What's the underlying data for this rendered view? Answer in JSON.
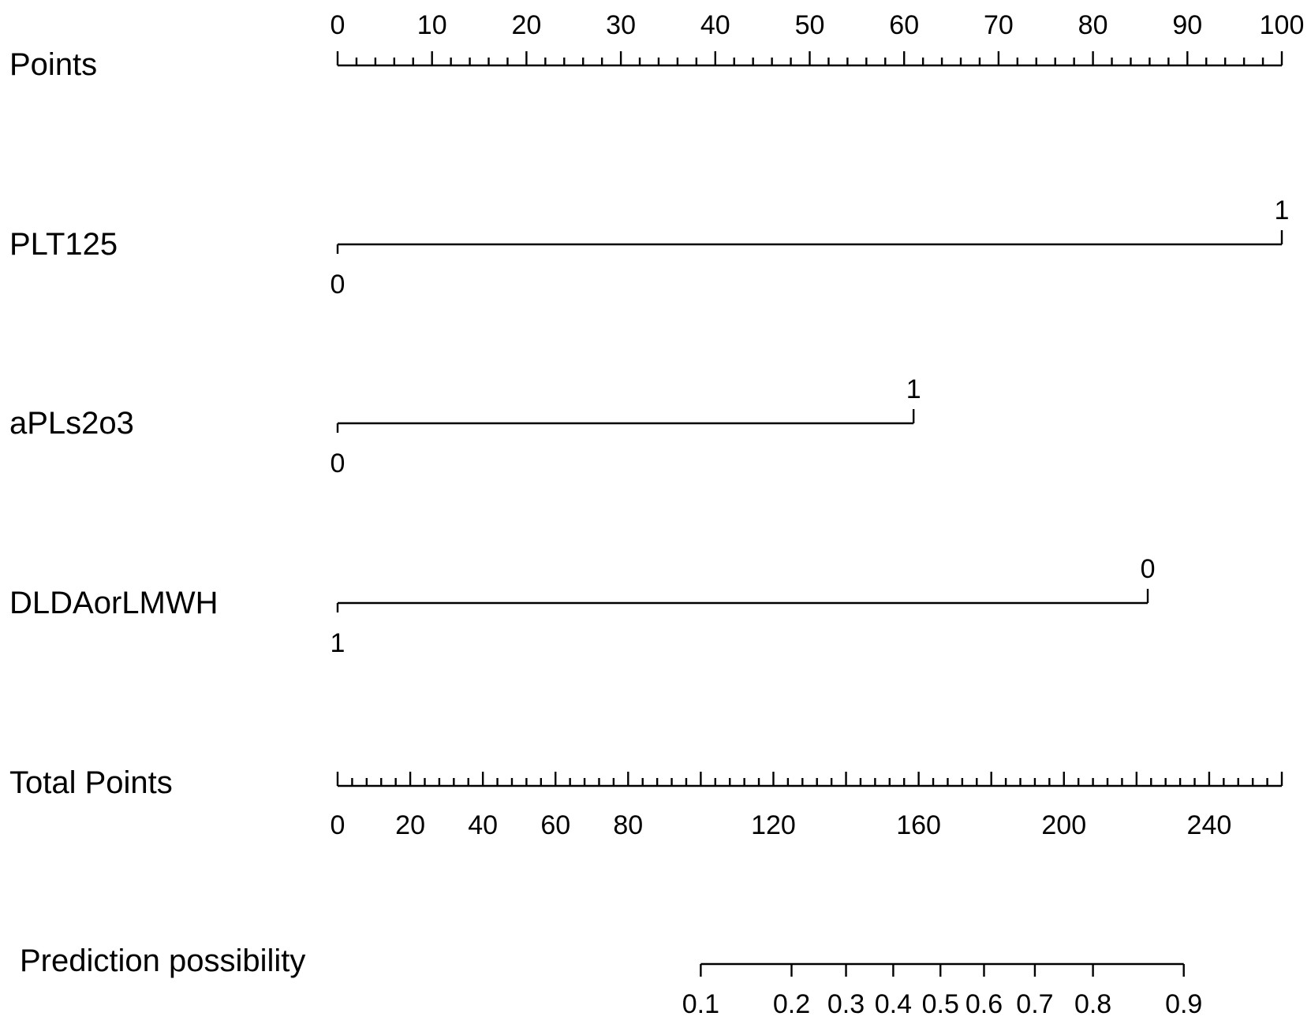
{
  "chart_data": {
    "type": "nomogram",
    "points_scale": {
      "label": "Points",
      "min": 0,
      "max": 100,
      "major_ticks": [
        0,
        10,
        20,
        30,
        40,
        50,
        60,
        70,
        80,
        90,
        100
      ],
      "tick_labels": [
        "0",
        "10",
        "20",
        "30",
        "40",
        "50",
        "60",
        "70",
        "80",
        "90",
        "100"
      ],
      "minor_step": 2
    },
    "variables": [
      {
        "name": "PLT125",
        "levels": [
          {
            "label": "0",
            "points": 0
          },
          {
            "label": "1",
            "points": 100
          }
        ]
      },
      {
        "name": "aPLs2o3",
        "levels": [
          {
            "label": "0",
            "points": 0
          },
          {
            "label": "1",
            "points": 61
          }
        ]
      },
      {
        "name": "DLDAorLMWH",
        "levels": [
          {
            "label": "1",
            "points": 0
          },
          {
            "label": "0",
            "points": 85.8
          }
        ]
      }
    ],
    "total_points": {
      "label": "Total Points",
      "min": 0,
      "max": 260,
      "tick_labels": [
        "0",
        "20",
        "40",
        "60",
        "80",
        "120",
        "160",
        "200",
        "240"
      ],
      "labeled_values": [
        0,
        20,
        40,
        60,
        80,
        120,
        160,
        200,
        240
      ],
      "major_step": 20,
      "minor_step": 4
    },
    "prediction": {
      "label": "Prediction possibility",
      "ticks": [
        {
          "label": "0.1",
          "total_points": 100
        },
        {
          "label": "0.2",
          "total_points": 125
        },
        {
          "label": "0.3",
          "total_points": 140
        },
        {
          "label": "0.4",
          "total_points": 153
        },
        {
          "label": "0.5",
          "total_points": 166
        },
        {
          "label": "0.6",
          "total_points": 178
        },
        {
          "label": "0.7",
          "total_points": 192
        },
        {
          "label": "0.8",
          "total_points": 208
        },
        {
          "label": "0.9",
          "total_points": 233
        }
      ]
    }
  }
}
